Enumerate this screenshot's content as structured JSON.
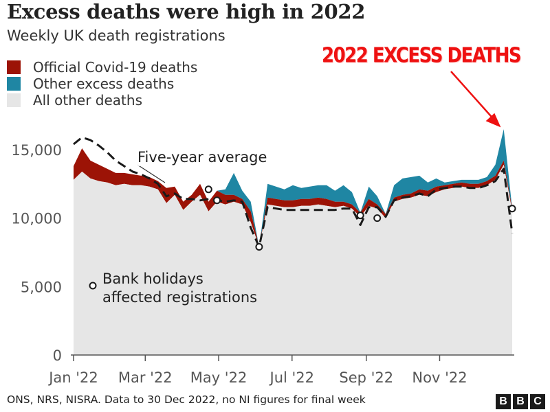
{
  "header": {
    "title": "Excess deaths were high in 2022",
    "subtitle": "Weekly UK death registrations"
  },
  "legend": [
    {
      "label": "Official Covid-19 deaths",
      "color": "#9c1306"
    },
    {
      "label": "Other excess deaths",
      "color": "#1f86a3"
    },
    {
      "label": "All other deaths",
      "color": "#e6e6e6"
    }
  ],
  "annotation": {
    "text": "2022 EXCESS DEATHS",
    "color": "#ee1111"
  },
  "footer": {
    "source": "ONS, NRS, NISRA. Data to 30 Dec 2022, no NI figures for final week",
    "logo_letters": [
      "B",
      "B",
      "C"
    ]
  },
  "chart_data": {
    "type": "area",
    "title": "Excess deaths were high in 2022",
    "subtitle": "Weekly UK death registrations",
    "xlabel": "",
    "ylabel": "",
    "ylim": [
      0,
      17000
    ],
    "yticks": [
      0,
      5000,
      10000,
      15000
    ],
    "ytick_labels": [
      "0",
      "5,000",
      "10,000",
      "15,000"
    ],
    "xticks": [
      {
        "label": "Jan '22",
        "week": 1
      },
      {
        "label": "Mar '22",
        "week": 9.5
      },
      {
        "label": "May '22",
        "week": 18.2
      },
      {
        "label": "Jul '22",
        "week": 26.9
      },
      {
        "label": "Sep '22",
        "week": 35.7
      },
      {
        "label": "Nov '22",
        "week": 44.4
      }
    ],
    "grid": false,
    "legend_position": "top-left",
    "weeks": [
      1,
      2,
      3,
      4,
      5,
      6,
      7,
      8,
      9,
      10,
      11,
      12,
      13,
      14,
      15,
      16,
      17,
      18,
      19,
      20,
      21,
      22,
      23,
      24,
      25,
      26,
      27,
      28,
      29,
      30,
      31,
      32,
      33,
      34,
      35,
      36,
      37,
      38,
      39,
      40,
      41,
      42,
      43,
      44,
      45,
      46,
      47,
      48,
      49,
      50,
      51,
      52,
      53
    ],
    "series": [
      {
        "name": "All other deaths",
        "color": "#e6e6e6",
        "values": [
          12800,
          13400,
          12900,
          12700,
          12600,
          12400,
          12500,
          12400,
          12400,
          12300,
          12100,
          11100,
          11700,
          10600,
          11200,
          11700,
          10500,
          11200,
          11000,
          11200,
          11000,
          9700,
          7900,
          11000,
          10900,
          10800,
          10800,
          10900,
          10900,
          11000,
          10900,
          10800,
          10900,
          10700,
          10100,
          10900,
          10700,
          10000,
          11200,
          11400,
          11500,
          11700,
          11600,
          11900,
          12100,
          12200,
          12300,
          12200,
          12200,
          12400,
          12800,
          13900,
          10500
        ]
      },
      {
        "name": "Official Covid-19 deaths",
        "color": "#9c1306",
        "values": [
          1000,
          1700,
          1300,
          1200,
          1000,
          900,
          800,
          800,
          700,
          700,
          600,
          1100,
          600,
          600,
          500,
          800,
          700,
          800,
          700,
          500,
          400,
          800,
          0,
          500,
          500,
          500,
          500,
          500,
          500,
          500,
          500,
          400,
          300,
          300,
          300,
          500,
          300,
          300,
          300,
          300,
          300,
          400,
          400,
          400,
          300,
          300,
          300,
          300,
          300,
          300,
          300,
          300,
          200
        ]
      },
      {
        "name": "Other excess deaths",
        "color": "#1f86a3",
        "values": [
          0,
          0,
          0,
          0,
          0,
          0,
          0,
          0,
          0,
          0,
          0,
          0,
          0,
          0,
          0,
          0,
          0,
          0,
          400,
          1600,
          600,
          700,
          0,
          1000,
          900,
          800,
          1100,
          800,
          900,
          900,
          1000,
          800,
          1200,
          900,
          0,
          900,
          600,
          0,
          900,
          1200,
          1200,
          1000,
          600,
          600,
          200,
          200,
          200,
          300,
          300,
          300,
          800,
          2300,
          0
        ]
      }
    ],
    "five_year_average": {
      "label": "Five-year average",
      "values": [
        15400,
        15900,
        15700,
        15300,
        14800,
        14200,
        13800,
        13400,
        13200,
        12900,
        12500,
        11600,
        11800,
        11400,
        11400,
        11300,
        11400,
        11300,
        11200,
        11300,
        11200,
        9300,
        7900,
        10800,
        10700,
        10600,
        10600,
        10600,
        10600,
        10600,
        10600,
        10600,
        10700,
        10700,
        9500,
        10800,
        10800,
        10100,
        11300,
        11500,
        11600,
        11800,
        11600,
        12100,
        12200,
        12300,
        12300,
        12200,
        12200,
        12400,
        12700,
        13600,
        8900
      ]
    },
    "bank_holidays": {
      "label": "Bank holidays affected registrations",
      "points": [
        {
          "week": 17,
          "value": 12100
        },
        {
          "week": 18,
          "value": 11300
        },
        {
          "week": 23,
          "value": 7900
        },
        {
          "week": 35,
          "value": 10200
        },
        {
          "week": 37,
          "value": 10000
        },
        {
          "week": 53,
          "value": 10700
        }
      ]
    },
    "annotations": [
      "2022 EXCESS DEATHS"
    ]
  }
}
